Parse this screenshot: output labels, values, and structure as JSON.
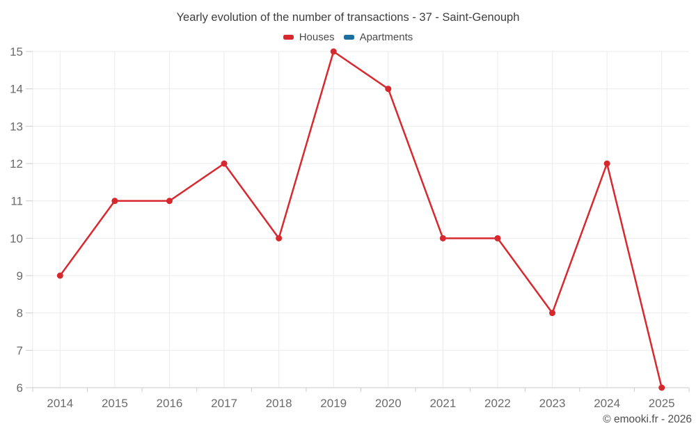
{
  "chart_data": {
    "type": "line",
    "title": "Yearly evolution of the number of transactions - 37 - Saint-Genouph",
    "categories": [
      "2014",
      "2015",
      "2016",
      "2017",
      "2018",
      "2019",
      "2020",
      "2021",
      "2022",
      "2023",
      "2024",
      "2025"
    ],
    "series": [
      {
        "name": "Houses",
        "color": "#d7282e",
        "values": [
          9,
          11,
          11,
          12,
          10,
          15,
          14,
          10,
          10,
          8,
          12,
          6
        ]
      },
      {
        "name": "Apartments",
        "color": "#1c6f9f",
        "values": []
      }
    ],
    "xlabel": "",
    "ylabel": "",
    "ylim": [
      6,
      15
    ],
    "yticks": [
      6,
      7,
      8,
      9,
      10,
      11,
      12,
      13,
      14,
      15
    ],
    "grid": true,
    "legend_position": "top"
  },
  "watermark": "© emooki.fr - 2026",
  "colors": {
    "houses_series": "#d7282e",
    "apartments_series": "#1c6f9f",
    "grid_line": "#ebebeb",
    "axis_line": "#c9c9c9",
    "tick_mark": "#cccccc",
    "axis_label_text": "#6b6b6b",
    "title_text": "#3e3e3e",
    "legend_text": "#4a4a4a",
    "watermark_text": "#4d4d4d"
  }
}
